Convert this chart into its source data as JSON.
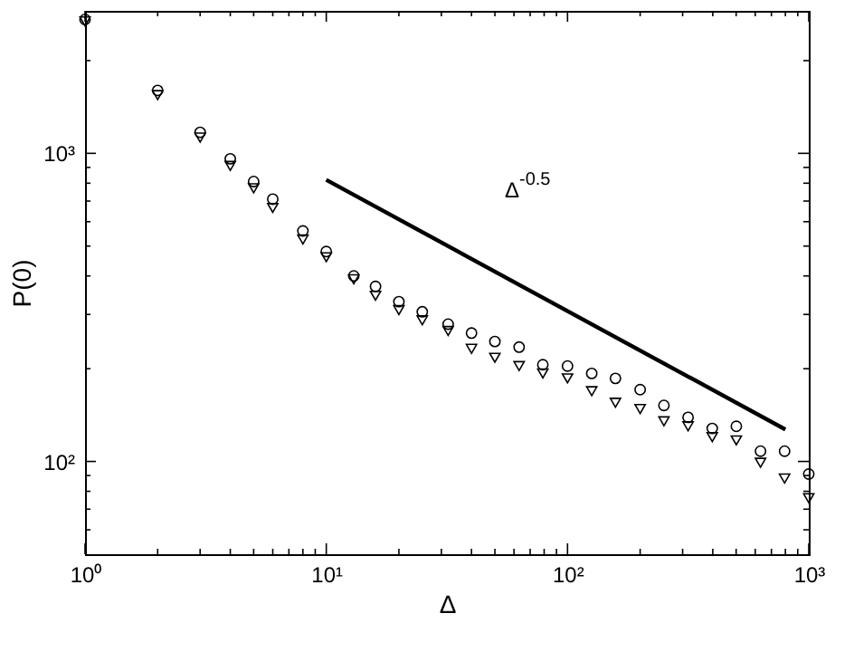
{
  "chart_data": {
    "type": "scatter",
    "xlabel": "Δ",
    "ylabel": "P(0)",
    "log": "xy",
    "grid": false,
    "xlim": [
      1,
      1000
    ],
    "ylim": [
      50,
      2900
    ],
    "xticks": [
      {
        "value": 1,
        "label": "10⁰"
      },
      {
        "value": 2,
        "label": null
      },
      {
        "value": 3,
        "label": null
      },
      {
        "value": 4,
        "label": null
      },
      {
        "value": 5,
        "label": null
      },
      {
        "value": 6,
        "label": null
      },
      {
        "value": 7,
        "label": null
      },
      {
        "value": 8,
        "label": null
      },
      {
        "value": 9,
        "label": null
      },
      {
        "value": 10,
        "label": "10¹"
      },
      {
        "value": 20,
        "label": null
      },
      {
        "value": 30,
        "label": null
      },
      {
        "value": 40,
        "label": null
      },
      {
        "value": 50,
        "label": null
      },
      {
        "value": 60,
        "label": null
      },
      {
        "value": 70,
        "label": null
      },
      {
        "value": 80,
        "label": null
      },
      {
        "value": 90,
        "label": null
      },
      {
        "value": 100,
        "label": "10²"
      },
      {
        "value": 200,
        "label": null
      },
      {
        "value": 300,
        "label": null
      },
      {
        "value": 400,
        "label": null
      },
      {
        "value": 500,
        "label": null
      },
      {
        "value": 600,
        "label": null
      },
      {
        "value": 700,
        "label": null
      },
      {
        "value": 800,
        "label": null
      },
      {
        "value": 900,
        "label": null
      },
      {
        "value": 1000,
        "label": "10³"
      }
    ],
    "yticks": [
      {
        "value": 60,
        "label": null
      },
      {
        "value": 70,
        "label": null
      },
      {
        "value": 80,
        "label": null
      },
      {
        "value": 90,
        "label": null
      },
      {
        "value": 100,
        "label": "10²"
      },
      {
        "value": 200,
        "label": null
      },
      {
        "value": 300,
        "label": null
      },
      {
        "value": 400,
        "label": null
      },
      {
        "value": 500,
        "label": null
      },
      {
        "value": 600,
        "label": null
      },
      {
        "value": 700,
        "label": null
      },
      {
        "value": 800,
        "label": null
      },
      {
        "value": 900,
        "label": null
      },
      {
        "value": 1000,
        "label": "10³"
      },
      {
        "value": 2000,
        "label": null
      }
    ],
    "x": [
      1,
      2,
      3,
      4,
      5,
      6,
      8,
      10,
      13,
      16,
      20,
      25,
      32,
      40,
      50,
      63,
      79,
      100,
      126,
      158,
      200,
      251,
      316,
      398,
      501,
      631,
      794,
      1000
    ],
    "series": [
      {
        "marker": "circle",
        "color": "#000000",
        "values": [
          2720,
          1600,
          1170,
          960,
          810,
          710,
          560,
          480,
          400,
          370,
          330,
          306,
          279,
          261,
          245,
          235,
          206,
          204,
          193,
          186,
          171,
          152,
          139,
          128,
          130,
          108,
          108,
          91
        ]
      },
      {
        "marker": "triangle",
        "color": "#000000",
        "values": [
          2680,
          1545,
          1125,
          910,
          770,
          665,
          525,
          460,
          390,
          345,
          310,
          287,
          265,
          232,
          217,
          204,
          193,
          186,
          169,
          155,
          148,
          135,
          130,
          120,
          117,
          99,
          88,
          76
        ]
      },
      {
        "type": "line",
        "line_style": "solid",
        "color": "#000000",
        "x": [
          10,
          800
        ],
        "values": [
          820,
          127
        ]
      }
    ],
    "annotations": [
      "Δ$^{-0.5}$"
    ]
  }
}
